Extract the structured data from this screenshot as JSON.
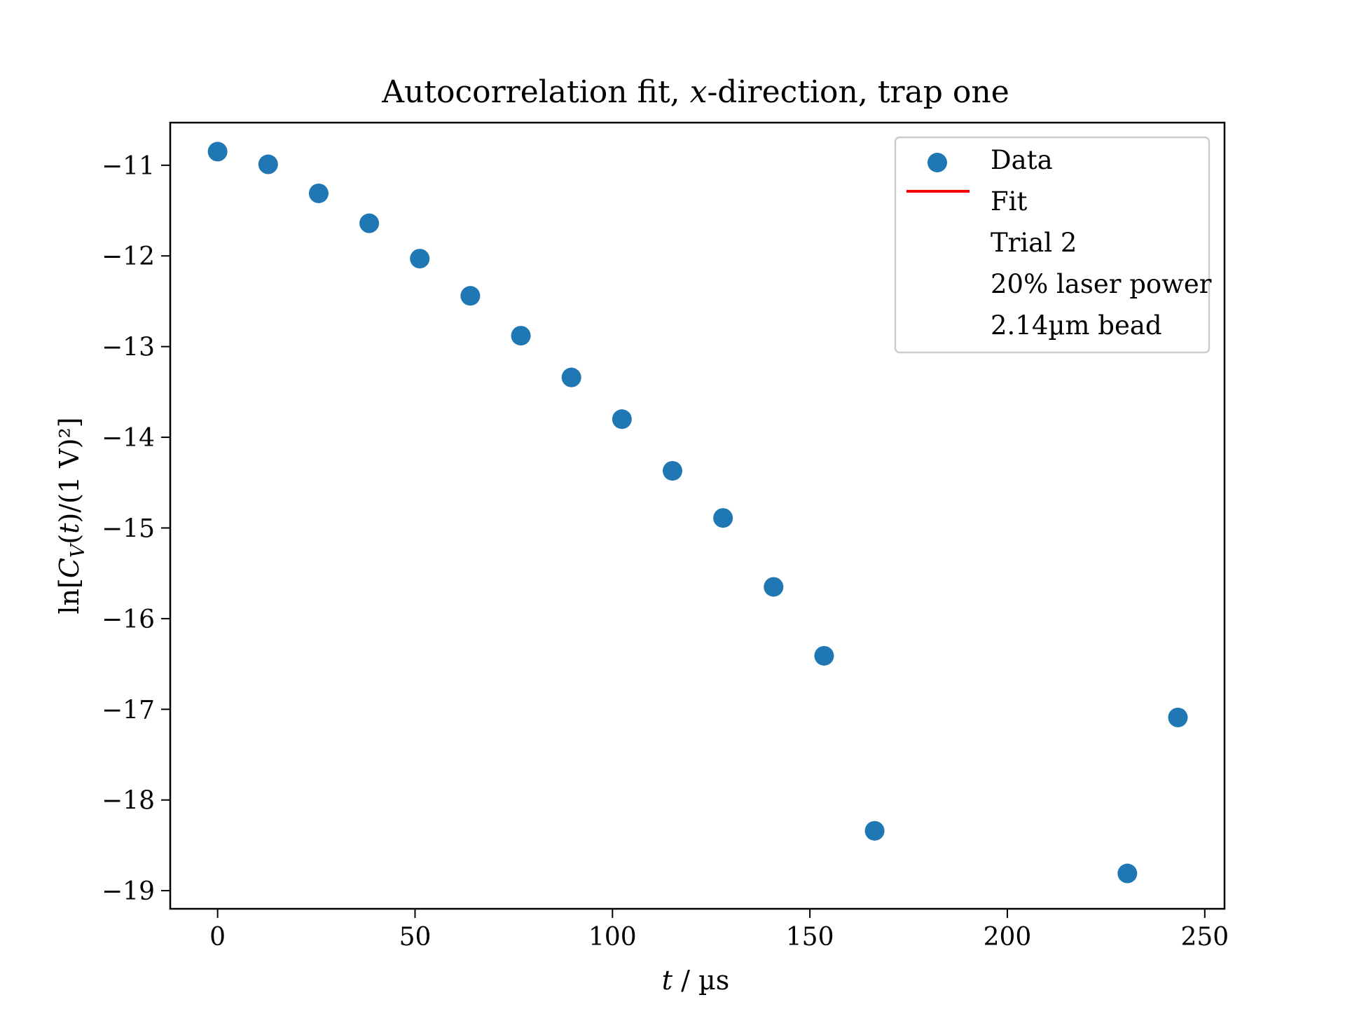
{
  "chart_data": {
    "type": "scatter",
    "title": "Autocorrelation fit, x-direction, trap one",
    "xlabel": "t / µs",
    "ylabel": "ln[C_V(t)/(1 V)²]",
    "xlim": [
      -12,
      255
    ],
    "ylim": [
      -19.2,
      -10.53
    ],
    "xticks": [
      0,
      50,
      100,
      150,
      200,
      250
    ],
    "xtick_labels": [
      "0",
      "50",
      "100",
      "150",
      "200",
      "250"
    ],
    "yticks": [
      -11,
      -12,
      -13,
      -14,
      -15,
      -16,
      -17,
      -18,
      -19
    ],
    "ytick_labels": [
      "−11",
      "−12",
      "−13",
      "−14",
      "−15",
      "−16",
      "−17",
      "−18",
      "−19"
    ],
    "grid": false,
    "legend_position": "top-right",
    "series": [
      {
        "name": "Data",
        "kind": "scatter",
        "color": "#1f77b4",
        "x": [
          0,
          12.8,
          25.6,
          38.4,
          51.2,
          64.0,
          76.8,
          89.6,
          102.4,
          115.2,
          128.0,
          140.8,
          153.6,
          166.4,
          230.4,
          243.2
        ],
        "y": [
          -10.85,
          -10.99,
          -11.31,
          -11.64,
          -12.03,
          -12.44,
          -12.88,
          -13.34,
          -13.8,
          -14.37,
          -14.89,
          -15.65,
          -16.41,
          -18.34,
          -18.81,
          -17.09
        ]
      },
      {
        "name": "Fit",
        "kind": "line",
        "color": "#ff0000",
        "x": [],
        "y": []
      }
    ],
    "legend_notes": [
      "Trial 2",
      "20% laser power",
      "2.14µm bead"
    ]
  }
}
